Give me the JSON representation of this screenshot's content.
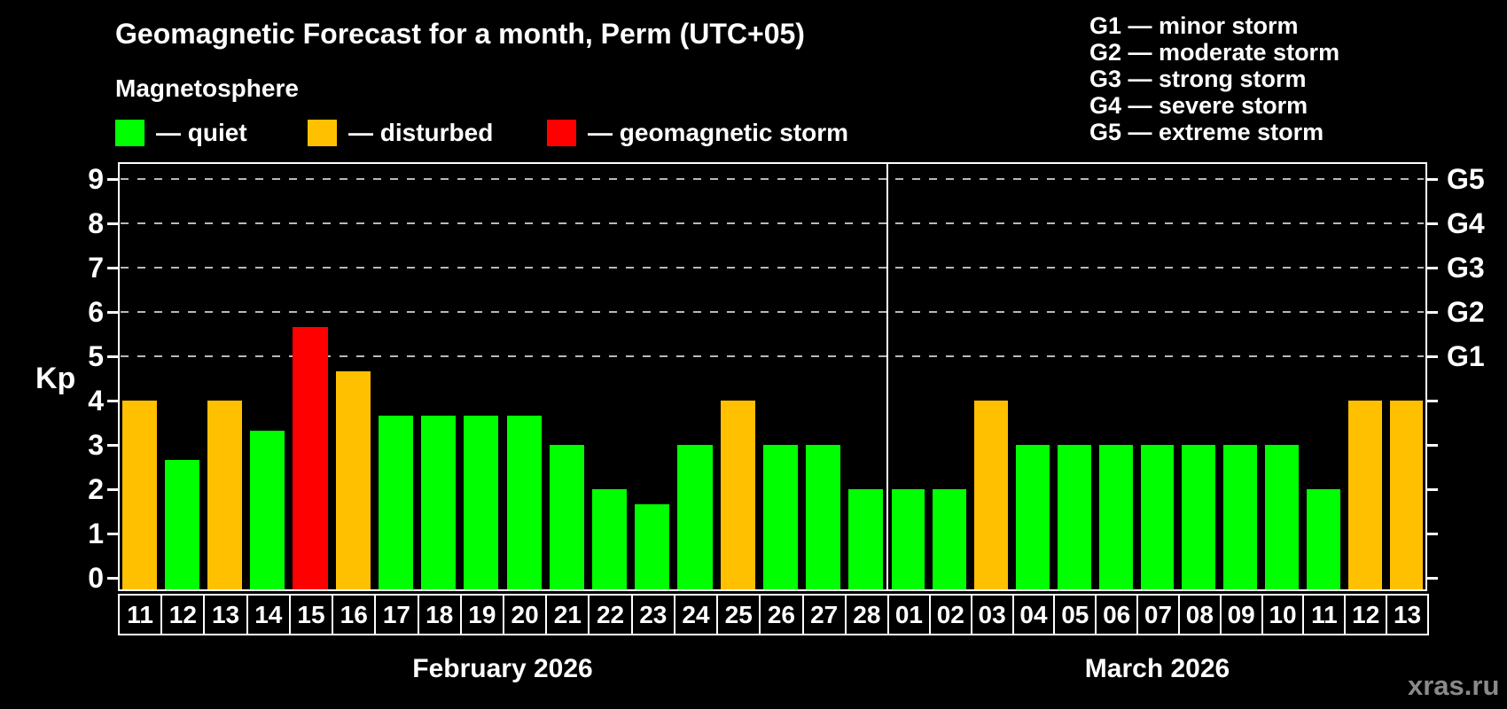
{
  "header": {
    "title": "Geomagnetic Forecast for a month, Perm (UTC+05)",
    "subtitle": "Magnetosphere"
  },
  "watermark": "xras.ru",
  "colors": {
    "quiet": "#00ff00",
    "disturbed": "#ffc000",
    "storm": "#ff0000",
    "background": "#000000",
    "frame": "#ffffff",
    "gridline": "#b9b9b9",
    "watermark_gray": "#8a8a8a"
  },
  "legend": {
    "items": [
      {
        "level": "quiet",
        "label": "— quiet"
      },
      {
        "level": "disturbed",
        "label": "— disturbed"
      },
      {
        "level": "storm",
        "label": "— geomagnetic storm"
      }
    ]
  },
  "chart_data": {
    "type": "bar",
    "title": "Geomagnetic Forecast for a month, Perm (UTC+05)",
    "ylabel": "Kp",
    "ylim": [
      0,
      9.4
    ],
    "yticks": [
      "0",
      "1",
      "2",
      "3",
      "4",
      "5",
      "6",
      "7",
      "8",
      "9"
    ],
    "grid": "dashed horizontal lines at Kp 5..9 (G1..G5), right axis labeled G1-G5",
    "legend_position": "top-left",
    "g_scale": [
      {
        "code": "G1",
        "kp": 5,
        "label": "G1 — minor storm"
      },
      {
        "code": "G2",
        "kp": 6,
        "label": "G2 — moderate storm"
      },
      {
        "code": "G3",
        "kp": 7,
        "label": "G3 — strong storm"
      },
      {
        "code": "G4",
        "kp": 8,
        "label": "G4 — severe storm"
      },
      {
        "code": "G5",
        "kp": 9,
        "label": "G5 — extreme storm"
      }
    ],
    "months": [
      {
        "label": "February 2026",
        "days": [
          {
            "day": "11",
            "kp": 4.0,
            "level": "disturbed"
          },
          {
            "day": "12",
            "kp": 2.67,
            "level": "quiet"
          },
          {
            "day": "13",
            "kp": 4.0,
            "level": "disturbed"
          },
          {
            "day": "14",
            "kp": 3.33,
            "level": "quiet"
          },
          {
            "day": "15",
            "kp": 5.67,
            "level": "storm"
          },
          {
            "day": "16",
            "kp": 4.67,
            "level": "disturbed"
          },
          {
            "day": "17",
            "kp": 3.67,
            "level": "quiet"
          },
          {
            "day": "18",
            "kp": 3.67,
            "level": "quiet"
          },
          {
            "day": "19",
            "kp": 3.67,
            "level": "quiet"
          },
          {
            "day": "20",
            "kp": 3.67,
            "level": "quiet"
          },
          {
            "day": "21",
            "kp": 3.0,
            "level": "quiet"
          },
          {
            "day": "22",
            "kp": 2.0,
            "level": "quiet"
          },
          {
            "day": "23",
            "kp": 1.67,
            "level": "quiet"
          },
          {
            "day": "24",
            "kp": 3.0,
            "level": "quiet"
          },
          {
            "day": "25",
            "kp": 4.0,
            "level": "disturbed"
          },
          {
            "day": "26",
            "kp": 3.0,
            "level": "quiet"
          },
          {
            "day": "27",
            "kp": 3.0,
            "level": "quiet"
          },
          {
            "day": "28",
            "kp": 2.0,
            "level": "quiet"
          }
        ]
      },
      {
        "label": "March 2026",
        "days": [
          {
            "day": "01",
            "kp": 2.0,
            "level": "quiet"
          },
          {
            "day": "02",
            "kp": 2.0,
            "level": "quiet"
          },
          {
            "day": "03",
            "kp": 4.0,
            "level": "disturbed"
          },
          {
            "day": "04",
            "kp": 3.0,
            "level": "quiet"
          },
          {
            "day": "05",
            "kp": 3.0,
            "level": "quiet"
          },
          {
            "day": "06",
            "kp": 3.0,
            "level": "quiet"
          },
          {
            "day": "07",
            "kp": 3.0,
            "level": "quiet"
          },
          {
            "day": "08",
            "kp": 3.0,
            "level": "quiet"
          },
          {
            "day": "09",
            "kp": 3.0,
            "level": "quiet"
          },
          {
            "day": "10",
            "kp": 3.0,
            "level": "quiet"
          },
          {
            "day": "11",
            "kp": 2.0,
            "level": "quiet"
          },
          {
            "day": "12",
            "kp": 4.0,
            "level": "disturbed"
          },
          {
            "day": "13",
            "kp": 4.0,
            "level": "disturbed"
          }
        ]
      }
    ]
  }
}
